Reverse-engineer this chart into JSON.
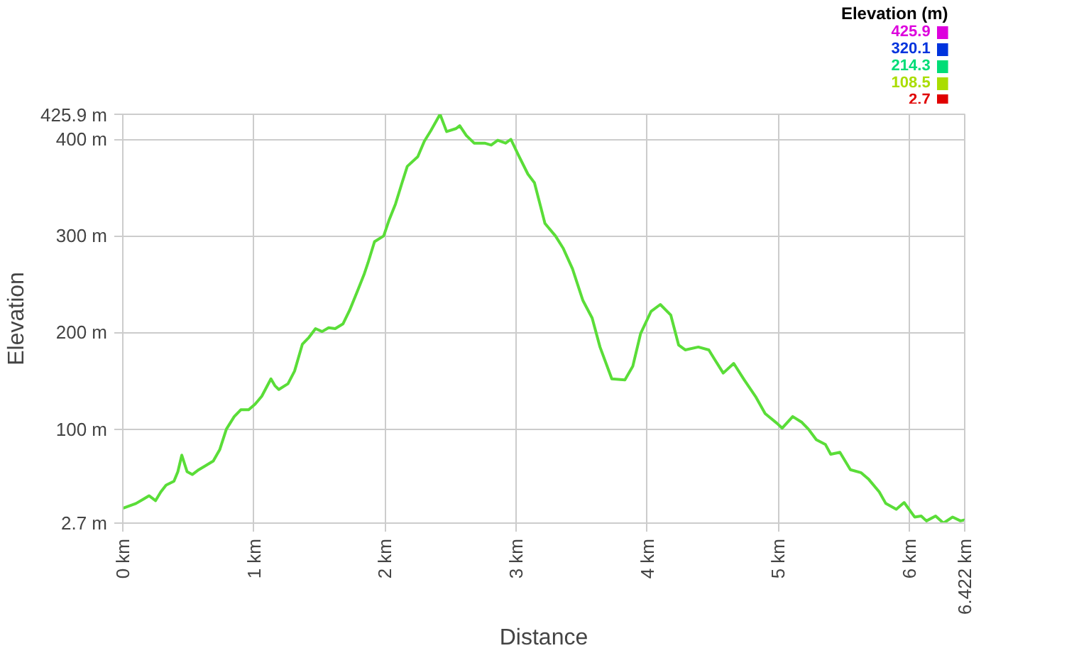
{
  "chart_data": {
    "type": "line",
    "xlabel": "Distance",
    "ylabel": "Elevation",
    "clabel": "Elevation (m)",
    "cticks": [
      2.7,
      108.5,
      214.3,
      320.1,
      425.9
    ],
    "colors": [
      "#e00000",
      "#aadd00",
      "#00dd77",
      "#0033dd",
      "#dd00dd"
    ],
    "x": [
      0,
      0.1,
      0.15,
      0.2,
      0.25,
      0.29,
      0.33,
      0.39,
      0.42,
      0.45,
      0.49,
      0.53,
      0.58,
      0.63,
      0.69,
      0.74,
      0.79,
      0.85,
      0.9,
      0.96,
      1.01,
      1.06,
      1.13,
      1.16,
      1.19,
      1.26,
      1.31,
      1.37,
      1.42,
      1.47,
      1.52,
      1.57,
      1.62,
      1.68,
      1.73,
      1.79,
      1.84,
      1.87,
      1.92,
      1.99,
      2.03,
      2.08,
      2.13,
      2.17,
      2.25,
      2.3,
      2.35,
      2.42,
      2.47,
      2.54,
      2.57,
      2.62,
      2.68,
      2.76,
      2.81,
      2.86,
      2.92,
      2.96,
      3.02,
      3.09,
      3.14,
      3.18,
      3.22,
      3.3,
      3.36,
      3.43,
      3.51,
      3.58,
      3.64,
      3.73,
      3.83,
      3.89,
      3.95,
      4.03,
      4.1,
      4.18,
      4.24,
      4.29,
      4.39,
      4.47,
      4.52,
      4.58,
      4.66,
      4.74,
      4.83,
      4.9,
      4.99,
      5.03,
      5.11,
      5.18,
      5.23,
      5.29,
      5.36,
      5.4,
      5.47,
      5.55,
      5.63,
      5.69,
      5.77,
      5.82,
      5.9,
      5.96,
      6.04,
      6.09,
      6.13,
      6.2,
      6.26,
      6.33,
      6.39,
      6.422
    ],
    "series": [
      {
        "values": [
          18,
          23,
          27,
          31,
          26,
          35,
          42,
          46,
          56,
          73,
          56,
          53,
          58,
          62,
          67,
          79,
          100,
          113,
          120,
          120,
          126,
          134,
          152,
          145,
          141,
          147,
          160,
          188,
          195,
          204,
          201,
          205,
          204,
          209,
          223,
          243,
          260,
          272,
          294,
          300,
          316,
          333,
          355,
          372,
          382,
          398,
          409,
          425.9,
          408,
          411,
          414,
          404,
          396,
          396,
          394,
          399,
          396,
          400,
          383,
          364,
          355,
          334,
          313,
          300,
          287,
          266,
          233,
          215,
          185,
          152,
          151,
          165,
          199,
          222,
          229,
          218,
          187,
          182,
          185,
          182,
          171,
          158,
          168,
          151,
          133,
          116,
          106,
          101,
          113,
          107,
          100,
          89,
          84,
          74,
          76,
          58,
          55,
          48,
          35,
          23,
          17,
          24,
          9,
          10,
          5,
          10,
          2.7,
          9,
          5,
          6
        ]
      }
    ],
    "xlim": [
      0,
      6.422
    ],
    "ylim": [
      2.7,
      425.9
    ],
    "xticks": [
      {
        "value": 0,
        "label": "0 km"
      },
      {
        "value": 1,
        "label": "1 km"
      },
      {
        "value": 2,
        "label": "2 km"
      },
      {
        "value": 3,
        "label": "3 km"
      },
      {
        "value": 4,
        "label": "4 km"
      },
      {
        "value": 5,
        "label": "5 km"
      },
      {
        "value": 6,
        "label": "6 km"
      },
      {
        "value": 6.422,
        "label": "6.422 km"
      }
    ],
    "yticks": [
      {
        "value": 2.7,
        "label": "2.7 m"
      },
      {
        "value": 100,
        "label": "100 m"
      },
      {
        "value": 200,
        "label": "200 m"
      },
      {
        "value": 300,
        "label": "300 m"
      },
      {
        "value": 400,
        "label": "400 m"
      },
      {
        "value": 425.9,
        "label": "425.9 m"
      }
    ],
    "grid": true
  }
}
